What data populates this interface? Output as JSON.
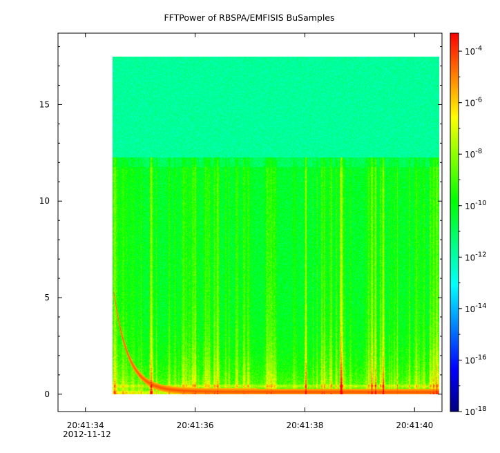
{
  "chart_data": {
    "type": "heatmap",
    "title": "FFTPower of RBSPA/EMFISIS  BuSamples",
    "xlabel": "",
    "ylabel": "",
    "x_tick_labels": [
      "20:41:34",
      "20:41:36",
      "20:41:38",
      "20:41:40"
    ],
    "x_sub_label": "2012-11-12",
    "x_tick_values": [
      34,
      36,
      38,
      40
    ],
    "xlim": [
      33.5,
      40.5
    ],
    "data_xrange": [
      34.5,
      40.45
    ],
    "y_ticks": [
      0,
      5,
      10,
      15
    ],
    "ylim": [
      -0.9,
      18.7
    ],
    "data_yrange": [
      0,
      17.5
    ],
    "noise_floor_boundary_y": 12.3,
    "colorbar": {
      "scale": "log",
      "range": [
        -18,
        -3.3
      ],
      "tick_exponents": [
        -4,
        -6,
        -8,
        -10,
        -12,
        -14,
        -16,
        -18
      ],
      "tick_labels": [
        "10",
        "10",
        "10",
        "10",
        "10",
        "10",
        "10",
        "10"
      ],
      "tick_superscripts": [
        "-4",
        "-6",
        "-8",
        "-10",
        "-12",
        "-14",
        "-16",
        "-18"
      ],
      "colors": [
        "#000080",
        "#0000ff",
        "#0080ff",
        "#00ffff",
        "#00ff80",
        "#00ff00",
        "#80ff00",
        "#ffff00",
        "#ff8000",
        "#ff0000"
      ]
    },
    "grid": false,
    "legend": "none"
  }
}
